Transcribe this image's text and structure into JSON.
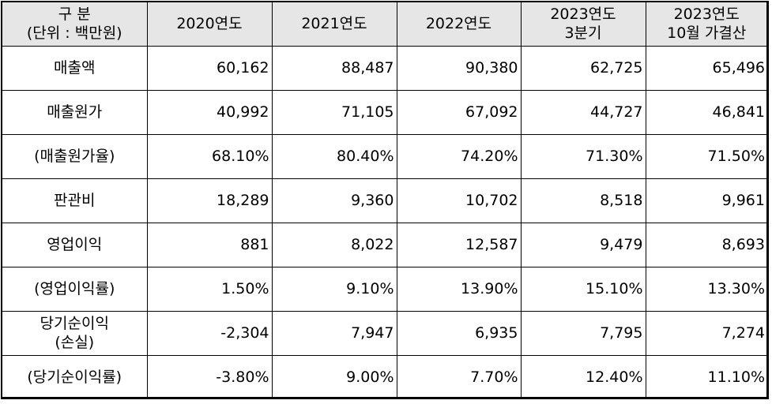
{
  "header": {
    "corner": {
      "line1": "구 분",
      "line2": "(단위 : 백만원)"
    },
    "columns": [
      {
        "line1": "2020연도",
        "line2": ""
      },
      {
        "line1": "2021연도",
        "line2": ""
      },
      {
        "line1": "2022연도",
        "line2": ""
      },
      {
        "line1": "2023연도",
        "line2": "3분기"
      },
      {
        "line1": "2023연도",
        "line2": "10월 가결산"
      }
    ]
  },
  "rows": [
    {
      "label1": "매출액",
      "label2": "",
      "values": [
        "60,162",
        "88,487",
        "90,380",
        "62,725",
        "65,496"
      ]
    },
    {
      "label1": "매출원가",
      "label2": "",
      "values": [
        "40,992",
        "71,105",
        "67,092",
        "44,727",
        "46,841"
      ]
    },
    {
      "label1": "(매출원가율)",
      "label2": "",
      "values": [
        "68.10%",
        "80.40%",
        "74.20%",
        "71.30%",
        "71.50%"
      ]
    },
    {
      "label1": "판관비",
      "label2": "",
      "values": [
        "18,289",
        "9,360",
        "10,702",
        "8,518",
        "9,961"
      ]
    },
    {
      "label1": "영업이익",
      "label2": "",
      "values": [
        "881",
        "8,022",
        "12,587",
        "9,479",
        "8,693"
      ]
    },
    {
      "label1": "(영업이익률)",
      "label2": "",
      "values": [
        "1.50%",
        "9.10%",
        "13.90%",
        "15.10%",
        "13.30%"
      ]
    },
    {
      "label1": "당기순이익",
      "label2": "(손실)",
      "values": [
        "-2,304",
        "7,947",
        "6,935",
        "7,795",
        "7,274"
      ]
    },
    {
      "label1": "(당기순이익률)",
      "label2": "",
      "values": [
        "-3.80%",
        "9.00%",
        "7.70%",
        "12.40%",
        "11.10%"
      ]
    }
  ],
  "colors": {
    "header_bg": "#e6e6e6",
    "border": "#000000",
    "text": "#000000",
    "cell_bg": "#ffffff"
  }
}
